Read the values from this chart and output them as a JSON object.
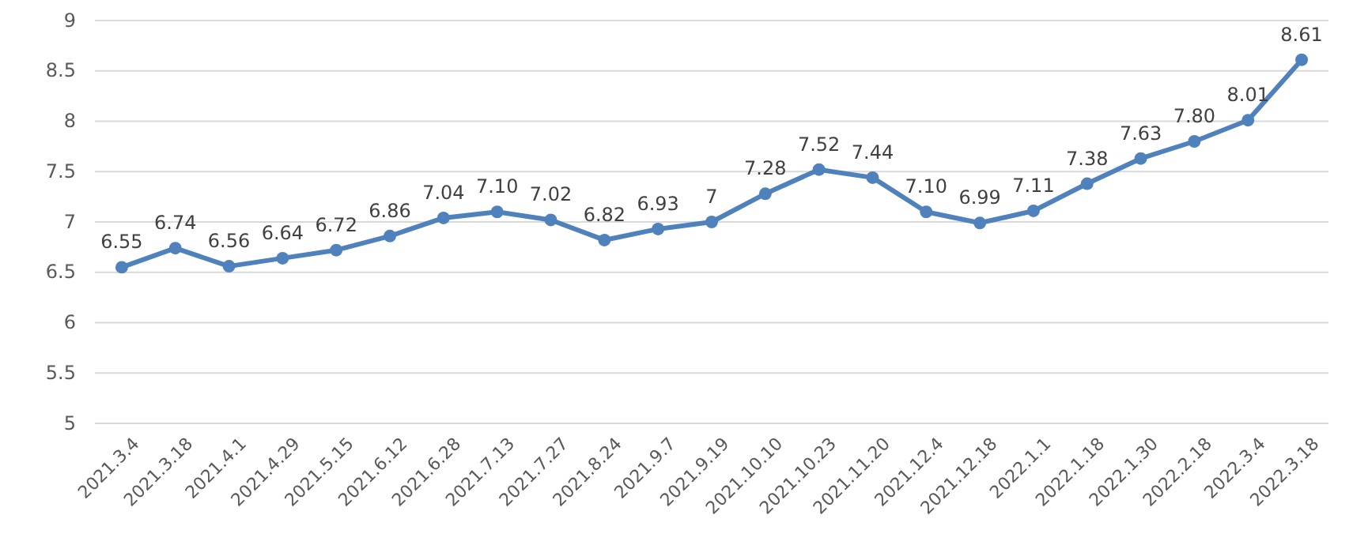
{
  "chart_data": {
    "type": "line",
    "categories": [
      "2021.3.4",
      "2021.3.18",
      "2021.4.1",
      "2021.4.29",
      "2021.5.15",
      "2021.6.12",
      "2021.6.28",
      "2021.7.13",
      "2021.7.27",
      "2021.8.24",
      "2021.9.7",
      "2021.9.19",
      "2021.10.10",
      "2021.10.23",
      "2021.11.20",
      "2021.12.4",
      "2021.12.18",
      "2022.1.1",
      "2022.1.18",
      "2022.1.30",
      "2022.2.18",
      "2022.3.4",
      "2022.3.18"
    ],
    "series": [
      {
        "color": "#4f81bd",
        "values": [
          6.55,
          6.74,
          6.56,
          6.64,
          6.72,
          6.86,
          7.04,
          7.1,
          7.02,
          6.82,
          6.93,
          7,
          7.28,
          7.52,
          7.44,
          7.1,
          6.99,
          7.11,
          7.38,
          7.63,
          7.8,
          8.01,
          8.61
        ],
        "value_labels": [
          "6.55",
          "6.74",
          "6.56",
          "6.64",
          "6.72",
          "6.86",
          "7.04",
          "7.10",
          "7.02",
          "6.82",
          "6.93",
          "7",
          "7.28",
          "7.52",
          "7.44",
          "7.10",
          "6.99",
          "7.11",
          "7.38",
          "7.63",
          "7.80",
          "8.01",
          "8.61"
        ]
      }
    ],
    "ylim": [
      5,
      9
    ],
    "yticks": [
      5,
      5.5,
      6,
      6.5,
      7,
      7.5,
      8,
      8.5,
      9
    ],
    "grid": "y",
    "marker": "circle",
    "line_style": "solid"
  }
}
